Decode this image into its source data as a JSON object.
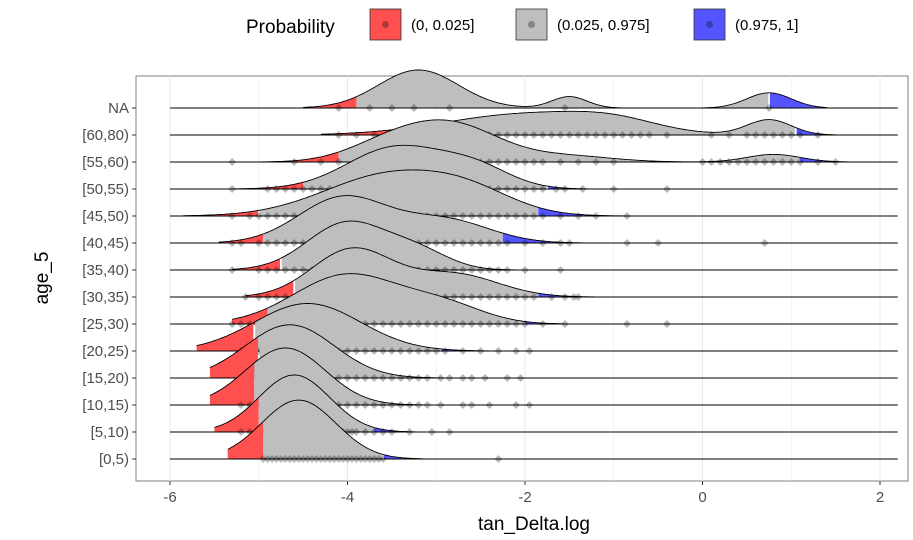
{
  "chart_data": {
    "type": "ridgeline",
    "xlabel": "tan_Delta.log",
    "ylabel": "age_5",
    "xlim": [
      -6.6,
      2.4
    ],
    "x_ticks": [
      -6,
      -4,
      -2,
      0,
      2
    ],
    "x_tick_labels": [
      "-6",
      "-4",
      "-2",
      "0",
      "2"
    ],
    "grid": true,
    "legend": {
      "title": "Probability",
      "position": "top",
      "entries": [
        {
          "label": "(0, 0.025]",
          "color": "#ff5050"
        },
        {
          "label": "(0.025, 0.975]",
          "color": "#bebebe"
        },
        {
          "label": "(0.975, 1]",
          "color": "#5555ff"
        }
      ]
    },
    "categories": [
      "[0,5)",
      "[5,10)",
      "[10,15)",
      "[15,20)",
      "[20,25)",
      "[25,30)",
      "[30,35)",
      "[35,40)",
      "[40,45)",
      "[45,50)",
      "[50,55)",
      "[55,60)",
      "[60,80)",
      "NA"
    ],
    "series": [
      {
        "category": "[0,5)",
        "min": -5.35,
        "max": -3.15,
        "q_low": -4.95,
        "q_high": -3.6,
        "peaks": [
          {
            "mu": -4.55,
            "sigma": 0.42,
            "h": 1.55
          }
        ],
        "points": [
          -4.95,
          -4.9,
          -4.85,
          -4.8,
          -4.75,
          -4.7,
          -4.65,
          -4.6,
          -4.55,
          -4.5,
          -4.45,
          -4.4,
          -4.35,
          -4.3,
          -4.25,
          -4.2,
          -4.15,
          -4.1,
          -4.05,
          -4.0,
          -3.95,
          -3.9,
          -3.85,
          -3.8,
          -3.75,
          -3.7,
          -3.65,
          -3.6,
          -2.3
        ]
      },
      {
        "category": "[5,10)",
        "min": -5.5,
        "max": -3.2,
        "q_low": -5.0,
        "q_high": -3.7,
        "peaks": [
          {
            "mu": -4.6,
            "sigma": 0.4,
            "h": 1.5
          }
        ],
        "points": [
          -5.2,
          -5.1,
          -5.0,
          -4.95,
          -4.9,
          -4.85,
          -4.8,
          -4.75,
          -4.7,
          -4.65,
          -4.6,
          -4.55,
          -4.5,
          -4.45,
          -4.4,
          -4.35,
          -4.3,
          -4.25,
          -4.2,
          -4.15,
          -4.1,
          -4.05,
          -4.0,
          -3.95,
          -3.9,
          -3.8,
          -3.7,
          -3.6,
          -3.5,
          -3.3,
          -3.05,
          -2.85
        ]
      },
      {
        "category": "[10,15)",
        "min": -5.55,
        "max": -1.8,
        "q_low": -5.05,
        "q_high": -3.45,
        "peaks": [
          {
            "mu": -4.7,
            "sigma": 0.45,
            "h": 1.5
          }
        ],
        "points": [
          -5.2,
          -5.1,
          -5.05,
          -5.0,
          -4.95,
          -4.9,
          -4.85,
          -4.8,
          -4.75,
          -4.7,
          -4.65,
          -4.6,
          -4.55,
          -4.5,
          -4.45,
          -4.4,
          -4.35,
          -4.3,
          -4.25,
          -4.2,
          -4.1,
          -4.0,
          -3.9,
          -3.8,
          -3.7,
          -3.6,
          -3.5,
          -3.4,
          -3.3,
          -3.2,
          -3.1,
          -2.95,
          -2.7,
          -2.6,
          -2.4,
          -2.1,
          -1.95
        ]
      },
      {
        "category": "[15,20)",
        "min": -5.55,
        "max": -1.75,
        "q_low": -5.0,
        "q_high": -3.3,
        "peaks": [
          {
            "mu": -4.65,
            "sigma": 0.5,
            "h": 1.4
          }
        ],
        "points": [
          -5.2,
          -5.1,
          -5.0,
          -4.95,
          -4.9,
          -4.85,
          -4.8,
          -4.75,
          -4.7,
          -4.65,
          -4.6,
          -4.55,
          -4.5,
          -4.45,
          -4.4,
          -4.35,
          -4.3,
          -4.2,
          -4.1,
          -4.0,
          -3.9,
          -3.8,
          -3.7,
          -3.6,
          -3.5,
          -3.4,
          -3.3,
          -3.2,
          -3.1,
          -2.95,
          -2.85,
          -2.7,
          -2.6,
          -2.45,
          -2.2,
          -2.05
        ]
      },
      {
        "category": "[20,25)",
        "min": -5.7,
        "max": -1.6,
        "q_low": -5.05,
        "q_high": -2.95,
        "peaks": [
          {
            "mu": -4.45,
            "sigma": 0.6,
            "h": 1.25
          }
        ],
        "points": [
          -5.2,
          -5.1,
          -5.05,
          -5.0,
          -4.95,
          -4.9,
          -4.85,
          -4.8,
          -4.7,
          -4.6,
          -4.5,
          -4.4,
          -4.3,
          -4.2,
          -4.1,
          -4.0,
          -3.9,
          -3.8,
          -3.7,
          -3.6,
          -3.5,
          -3.4,
          -3.3,
          -3.2,
          -3.1,
          -3.0,
          -2.9,
          -2.7,
          -2.5,
          -2.3,
          -2.1,
          -1.95
        ]
      },
      {
        "category": "[25,30)",
        "min": -5.3,
        "max": -1.55,
        "q_low": -4.9,
        "q_high": -2.0,
        "peaks": [
          {
            "mu": -4.0,
            "sigma": 0.6,
            "h": 1.3
          },
          {
            "mu": -2.9,
            "sigma": 0.45,
            "h": 0.45
          }
        ],
        "points": [
          -5.3,
          -5.2,
          -5.1,
          -5.0,
          -4.9,
          -4.8,
          -4.7,
          -4.6,
          -4.5,
          -4.4,
          -4.3,
          -4.2,
          -4.1,
          -4.0,
          -3.9,
          -3.8,
          -3.7,
          -3.6,
          -3.5,
          -3.4,
          -3.3,
          -3.2,
          -3.1,
          -3.0,
          -2.9,
          -2.8,
          -2.7,
          -2.6,
          -2.5,
          -2.4,
          -2.3,
          -2.2,
          -2.1,
          -2.0,
          -1.8,
          -1.55,
          -0.85,
          -0.4
        ]
      },
      {
        "category": "[30,35)",
        "min": -5.15,
        "max": -1.2,
        "q_low": -4.6,
        "q_high": -1.85,
        "peaks": [
          {
            "mu": -3.95,
            "sigma": 0.45,
            "h": 1.25
          },
          {
            "mu": -2.8,
            "sigma": 0.5,
            "h": 0.6
          }
        ],
        "points": [
          -5.15,
          -5.0,
          -4.9,
          -4.8,
          -4.7,
          -4.6,
          -4.5,
          -4.4,
          -4.3,
          -4.2,
          -4.1,
          -4.0,
          -3.9,
          -3.8,
          -3.7,
          -3.6,
          -3.5,
          -3.4,
          -3.3,
          -3.2,
          -3.1,
          -3.0,
          -2.9,
          -2.8,
          -2.7,
          -2.6,
          -2.5,
          -2.4,
          -2.3,
          -2.2,
          -2.1,
          -2.0,
          -1.9,
          -1.7,
          -1.55,
          -1.45,
          -1.4
        ]
      },
      {
        "category": "[35,40)",
        "min": -5.3,
        "max": -1.85,
        "q_low": -4.75,
        "q_high": -2.25,
        "peaks": [
          {
            "mu": -4.0,
            "sigma": 0.45,
            "h": 1.25
          },
          {
            "mu": -3.2,
            "sigma": 0.35,
            "h": 0.45
          }
        ],
        "points": [
          -5.3,
          -5.0,
          -4.9,
          -4.8,
          -4.7,
          -4.6,
          -4.5,
          -4.4,
          -4.3,
          -4.2,
          -4.1,
          -4.0,
          -3.9,
          -3.8,
          -3.7,
          -3.6,
          -3.5,
          -3.4,
          -3.3,
          -3.2,
          -3.1,
          -3.0,
          -2.9,
          -2.8,
          -2.7,
          -2.6,
          -2.5,
          -2.4,
          -2.3,
          -2.2,
          -2.0,
          -1.6
        ]
      },
      {
        "category": "[40,45)",
        "min": -5.45,
        "max": -1.35,
        "q_low": -4.95,
        "q_high": -2.25,
        "peaks": [
          {
            "mu": -4.05,
            "sigma": 0.5,
            "h": 1.2
          },
          {
            "mu": -2.9,
            "sigma": 0.5,
            "h": 0.6
          }
        ],
        "points": [
          -5.3,
          -5.2,
          -5.0,
          -4.9,
          -4.8,
          -4.7,
          -4.6,
          -4.5,
          -4.4,
          -4.3,
          -4.2,
          -4.1,
          -4.0,
          -3.9,
          -3.8,
          -3.7,
          -3.6,
          -3.5,
          -3.4,
          -3.3,
          -3.2,
          -3.1,
          -3.0,
          -2.9,
          -2.8,
          -2.7,
          -2.6,
          -2.5,
          -2.4,
          -2.3,
          -2.2,
          -2.0,
          -1.8,
          -1.6,
          -1.5,
          -0.85,
          -0.5,
          0.7
        ]
      },
      {
        "category": "[45,50)",
        "min": -5.85,
        "max": -0.4,
        "q_low": -5.0,
        "q_high": -1.85,
        "peaks": [
          {
            "mu": -3.5,
            "sigma": 0.75,
            "h": 1.1
          },
          {
            "mu": -2.6,
            "sigma": 0.5,
            "h": 0.4
          }
        ],
        "points": [
          -5.3,
          -5.1,
          -5.0,
          -4.9,
          -4.8,
          -4.7,
          -4.6,
          -4.5,
          -4.4,
          -4.3,
          -4.2,
          -4.1,
          -4.0,
          -3.9,
          -3.8,
          -3.7,
          -3.6,
          -3.5,
          -3.4,
          -3.3,
          -3.2,
          -3.1,
          -3.0,
          -2.9,
          -2.8,
          -2.7,
          -2.6,
          -2.5,
          -2.4,
          -2.3,
          -2.2,
          -2.1,
          -2.0,
          -1.9,
          -1.8,
          -1.6,
          -1.4,
          -1.2,
          -0.85
        ]
      },
      {
        "category": "[50,55)",
        "min": -5.3,
        "max": -0.8,
        "q_low": -4.5,
        "q_high": -1.75,
        "peaks": [
          {
            "mu": -3.45,
            "sigma": 0.55,
            "h": 1.1
          },
          {
            "mu": -2.55,
            "sigma": 0.4,
            "h": 0.5
          }
        ],
        "points": [
          -5.3,
          -4.9,
          -4.8,
          -4.7,
          -4.6,
          -4.5,
          -4.4,
          -4.3,
          -4.2,
          -4.1,
          -4.0,
          -3.9,
          -3.8,
          -3.7,
          -3.6,
          -3.5,
          -3.4,
          -3.3,
          -3.2,
          -3.1,
          -3.0,
          -2.9,
          -2.8,
          -2.7,
          -2.6,
          -2.5,
          -2.4,
          -2.3,
          -2.2,
          -2.1,
          -2.0,
          -1.9,
          -1.8,
          -1.65,
          -1.55,
          -1.35,
          -1.0,
          -0.4
        ]
      },
      {
        "category": "[55,60)",
        "min": -5.3,
        "max": 1.65,
        "q_low": -4.1,
        "q_high": 1.1,
        "peaks": [
          {
            "mu": -2.85,
            "sigma": 0.55,
            "h": 1.0
          },
          {
            "mu": -3.6,
            "sigma": 0.45,
            "h": 0.35
          },
          {
            "mu": 0.8,
            "sigma": 0.3,
            "h": 0.2
          },
          {
            "mu": -1.5,
            "sigma": 0.5,
            "h": 0.15
          }
        ],
        "points": [
          -5.3,
          -4.6,
          -4.3,
          -4.1,
          -3.9,
          -3.8,
          -3.7,
          -3.6,
          -3.5,
          -3.4,
          -3.3,
          -3.2,
          -3.1,
          -3.0,
          -2.9,
          -2.8,
          -2.7,
          -2.6,
          -2.5,
          -2.4,
          -2.3,
          -2.2,
          -2.1,
          -2.0,
          -1.9,
          -1.8,
          -1.6,
          -1.4,
          -1.2,
          -1.0,
          0.0,
          0.1,
          0.2,
          0.3,
          0.4,
          0.5,
          0.6,
          0.7,
          0.8,
          0.9,
          1.0,
          1.1,
          1.3,
          1.5
        ]
      },
      {
        "category": "[60,80)",
        "min": -4.3,
        "max": 1.8,
        "q_low": -3.4,
        "q_high": 1.05,
        "peaks": [
          {
            "mu": -2.0,
            "sigma": 0.9,
            "h": 0.55
          },
          {
            "mu": -1.0,
            "sigma": 0.5,
            "h": 0.25
          },
          {
            "mu": 0.75,
            "sigma": 0.25,
            "h": 0.4
          }
        ],
        "points": [
          -4.1,
          -3.9,
          -3.7,
          -3.4,
          -3.0,
          -2.8,
          -2.6,
          -2.5,
          -2.4,
          -2.3,
          -2.2,
          -2.1,
          -2.0,
          -1.9,
          -1.8,
          -1.7,
          -1.6,
          -1.5,
          -1.4,
          -1.3,
          -1.2,
          -1.1,
          -1.0,
          -0.9,
          -0.8,
          -0.7,
          -0.6,
          -0.4,
          0.1,
          0.3,
          0.5,
          0.6,
          0.7,
          0.8,
          0.9,
          1.0,
          1.1,
          1.3
        ]
      },
      {
        "category": "NA",
        "min": -4.5,
        "max": 1.4,
        "q_low": -3.9,
        "q_high": 0.75,
        "peaks": [
          {
            "mu": -3.2,
            "sigma": 0.45,
            "h": 1.0
          },
          {
            "mu": -1.5,
            "sigma": 0.2,
            "h": 0.3
          },
          {
            "mu": 0.75,
            "sigma": 0.25,
            "h": 0.4
          }
        ],
        "points": [
          -4.1,
          -3.75,
          -3.5,
          -3.25,
          -2.85,
          -1.55,
          0.75
        ]
      }
    ]
  }
}
